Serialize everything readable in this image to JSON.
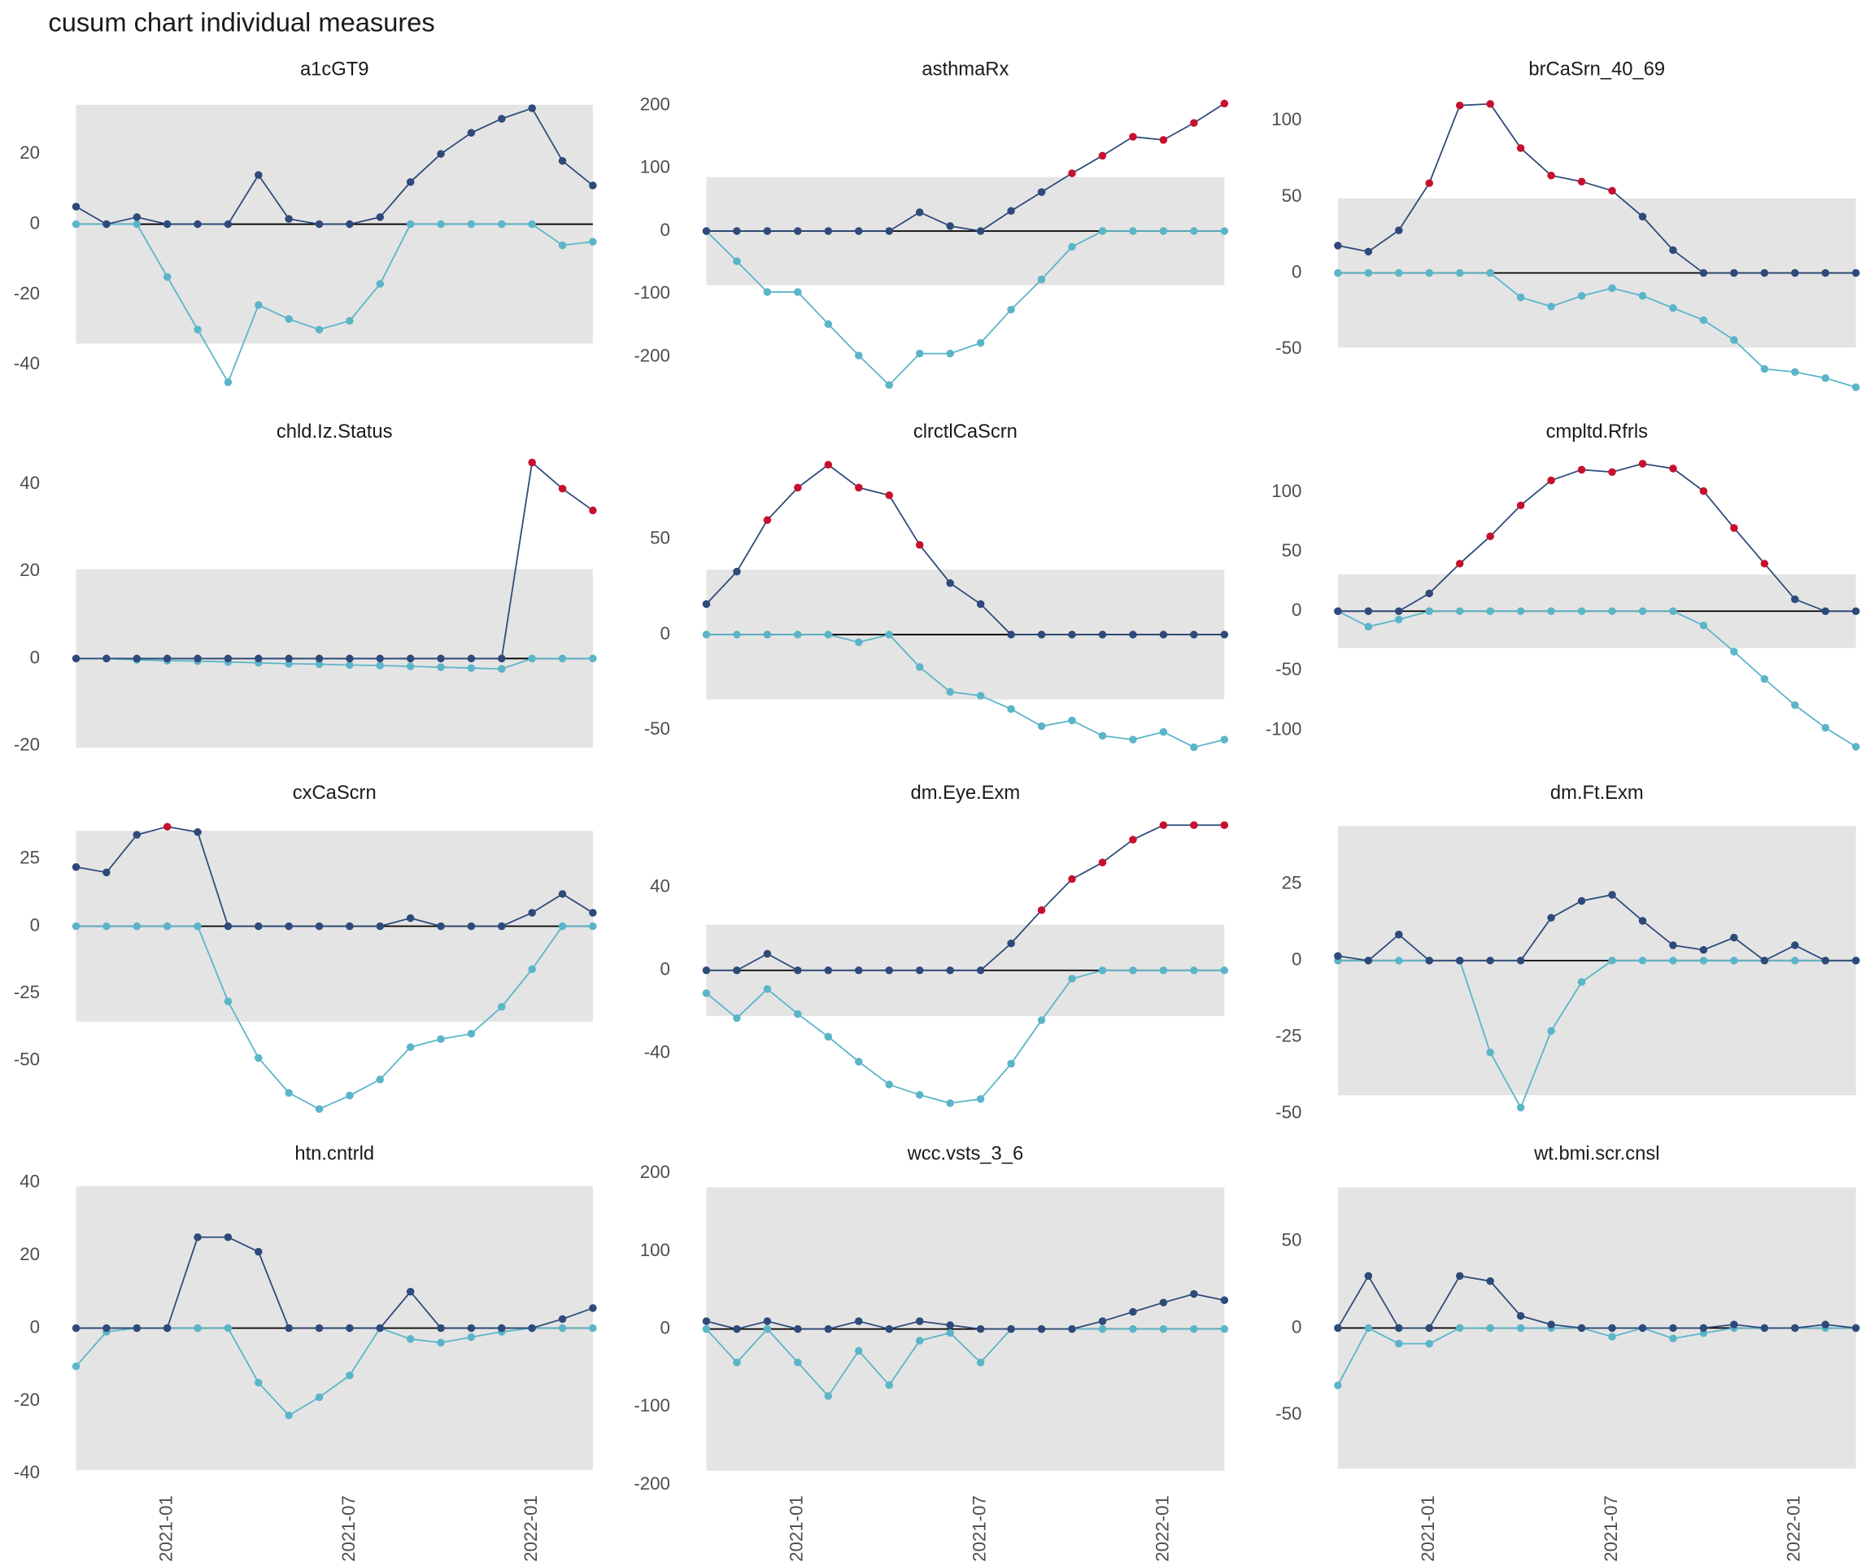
{
  "title": "cusum chart  individual measures",
  "chart_data": [
    {
      "type": "line",
      "title": "a1cGT9",
      "x": [
        "2020-10",
        "2020-11",
        "2020-12",
        "2021-01",
        "2021-02",
        "2021-03",
        "2021-04",
        "2021-05",
        "2021-06",
        "2021-07",
        "2021-08",
        "2021-09",
        "2021-10",
        "2021-11",
        "2021-12",
        "2022-01",
        "2022-02",
        "2022-03"
      ],
      "ylim": [
        -49,
        39
      ],
      "yticks": [
        -40,
        -20,
        0,
        20
      ],
      "limit": 34,
      "series": [
        {
          "color": "#2e4a7a",
          "highlight_color": "#c8102e",
          "values": [
            5,
            0,
            2,
            0,
            0,
            0,
            14,
            1.5,
            0,
            0,
            2,
            12,
            20,
            26,
            30,
            33,
            18,
            11
          ]
        },
        {
          "color": "#5bb5c8",
          "values": [
            0,
            0,
            0,
            -15,
            -30,
            -45,
            -23,
            -27,
            -30,
            -27.5,
            -17,
            0,
            0,
            0,
            0,
            0,
            -6,
            -5
          ]
        }
      ]
    },
    {
      "type": "line",
      "title": "asthmaRx",
      "x": [
        "2020-10",
        "2020-11",
        "2020-12",
        "2021-01",
        "2021-02",
        "2021-03",
        "2021-04",
        "2021-05",
        "2021-06",
        "2021-07",
        "2021-08",
        "2021-09",
        "2021-10",
        "2021-11",
        "2021-12",
        "2022-01",
        "2022-02",
        "2022-03"
      ],
      "ylim": [
        -263,
        229
      ],
      "yticks": [
        -200,
        -100,
        0,
        100,
        200
      ],
      "limit": 86,
      "series": [
        {
          "color": "#2e4a7a",
          "highlight_color": "#c8102e",
          "values": [
            0,
            0,
            0,
            0,
            0,
            0,
            0,
            30,
            8,
            0,
            32,
            62,
            92,
            120,
            150,
            145,
            172,
            203
          ]
        },
        {
          "color": "#5bb5c8",
          "values": [
            0,
            -48,
            -97,
            -97,
            -148,
            -198,
            -245,
            -195,
            -195,
            -178,
            -125,
            -77,
            -25,
            0,
            0,
            0,
            0,
            0
          ]
        }
      ]
    },
    {
      "type": "line",
      "title": "brCaSrn_40_69",
      "x": [
        "2020-10",
        "2020-11",
        "2020-12",
        "2021-01",
        "2021-02",
        "2021-03",
        "2021-04",
        "2021-05",
        "2021-06",
        "2021-07",
        "2021-08",
        "2021-09",
        "2021-10",
        "2021-11",
        "2021-12",
        "2022-01",
        "2022-02",
        "2022-03"
      ],
      "ylim": [
        -81,
        122
      ],
      "yticks": [
        -50,
        0,
        50,
        100
      ],
      "limit": 49,
      "series": [
        {
          "color": "#2e4a7a",
          "highlight_color": "#c8102e",
          "values": [
            18,
            14,
            28,
            59,
            110,
            111,
            82,
            64,
            60,
            54,
            37,
            15,
            0,
            0,
            0,
            0,
            0,
            0
          ]
        },
        {
          "color": "#5bb5c8",
          "values": [
            0,
            0,
            0,
            0,
            0,
            0,
            -16,
            -22,
            -15,
            -10,
            -15,
            -23,
            -31,
            -44,
            -63,
            -65,
            -69,
            -75
          ]
        }
      ]
    },
    {
      "type": "line",
      "title": "chld.Iz.Status",
      "x": [
        "2020-10",
        "2020-11",
        "2020-12",
        "2021-01",
        "2021-02",
        "2021-03",
        "2021-04",
        "2021-05",
        "2021-06",
        "2021-07",
        "2021-08",
        "2021-09",
        "2021-10",
        "2021-11",
        "2021-12",
        "2022-01",
        "2022-02",
        "2022-03"
      ],
      "ylim": [
        -23,
        48
      ],
      "yticks": [
        -20,
        0,
        20,
        40
      ],
      "limit": 20.5,
      "series": [
        {
          "color": "#2e4a7a",
          "highlight_color": "#c8102e",
          "values": [
            0,
            0,
            0,
            0,
            0,
            0,
            0,
            0,
            0,
            0,
            0,
            0,
            0,
            0,
            0,
            45,
            39,
            34
          ]
        },
        {
          "color": "#5bb5c8",
          "values": [
            0,
            0,
            -0.3,
            -0.5,
            -0.6,
            -0.8,
            -1,
            -1.2,
            -1.3,
            -1.5,
            -1.6,
            -1.8,
            -2,
            -2.2,
            -2.4,
            0,
            0,
            0
          ]
        }
      ]
    },
    {
      "type": "line",
      "title": "clrctlCaScrn",
      "x": [
        "2020-10",
        "2020-11",
        "2020-12",
        "2021-01",
        "2021-02",
        "2021-03",
        "2021-04",
        "2021-05",
        "2021-06",
        "2021-07",
        "2021-08",
        "2021-09",
        "2021-10",
        "2021-11",
        "2021-12",
        "2022-01",
        "2022-02",
        "2022-03"
      ],
      "ylim": [
        -65,
        97
      ],
      "yticks": [
        -50,
        0,
        50
      ],
      "limit": 34,
      "series": [
        {
          "color": "#2e4a7a",
          "highlight_color": "#c8102e",
          "values": [
            16,
            33,
            60,
            77,
            89,
            77,
            73,
            47,
            27,
            16,
            0,
            0,
            0,
            0,
            0,
            0,
            0,
            0
          ]
        },
        {
          "color": "#5bb5c8",
          "values": [
            0,
            0,
            0,
            0,
            0,
            -4,
            0,
            -17,
            -30,
            -32,
            -39,
            -48,
            -45,
            -53,
            -55,
            -51,
            -59,
            -55
          ]
        }
      ]
    },
    {
      "type": "line",
      "title": "cmpltd.Rfrls",
      "x": [
        "2020-10",
        "2020-11",
        "2020-12",
        "2021-01",
        "2021-02",
        "2021-03",
        "2021-04",
        "2021-05",
        "2021-06",
        "2021-07",
        "2021-08",
        "2021-09",
        "2021-10",
        "2021-11",
        "2021-12",
        "2022-01",
        "2022-02",
        "2022-03"
      ],
      "ylim": [
        -124,
        136
      ],
      "yticks": [
        -100,
        -50,
        0,
        50,
        100
      ],
      "limit": 31,
      "series": [
        {
          "color": "#2e4a7a",
          "highlight_color": "#c8102e",
          "values": [
            0,
            0,
            0,
            15,
            40,
            63,
            89,
            110,
            119,
            117,
            124,
            120,
            101,
            70,
            40,
            10,
            0,
            0
          ]
        },
        {
          "color": "#5bb5c8",
          "values": [
            0,
            -13,
            -7,
            0,
            0,
            0,
            0,
            0,
            0,
            0,
            0,
            0,
            -12,
            -34,
            -57,
            -79,
            -98,
            -114
          ]
        }
      ]
    },
    {
      "type": "line",
      "title": "cxCaScrn",
      "x": [
        "2020-10",
        "2020-11",
        "2020-12",
        "2021-01",
        "2021-02",
        "2021-03",
        "2021-04",
        "2021-05",
        "2021-06",
        "2021-07",
        "2021-08",
        "2021-09",
        "2021-10",
        "2021-11",
        "2021-12",
        "2022-01",
        "2022-02",
        "2022-03"
      ],
      "ylim": [
        -72,
        43
      ],
      "yticks": [
        -50,
        -25,
        0,
        25
      ],
      "limit": 35.5,
      "series": [
        {
          "color": "#2e4a7a",
          "highlight_color": "#c8102e",
          "values": [
            22,
            20,
            34,
            37,
            35,
            0,
            0,
            0,
            0,
            0,
            0,
            3,
            0,
            0,
            0,
            5,
            12,
            5
          ]
        },
        {
          "color": "#5bb5c8",
          "values": [
            0,
            0,
            0,
            0,
            0,
            -28,
            -49,
            -62,
            -68,
            -63,
            -57,
            -45,
            -42,
            -40,
            -30,
            -16,
            0,
            0
          ]
        }
      ]
    },
    {
      "type": "line",
      "title": "dm.Eye.Exm",
      "x": [
        "2020-10",
        "2020-11",
        "2020-12",
        "2021-01",
        "2021-02",
        "2021-03",
        "2021-04",
        "2021-05",
        "2021-06",
        "2021-07",
        "2021-08",
        "2021-09",
        "2021-10",
        "2021-11",
        "2021-12",
        "2022-01",
        "2022-02",
        "2022-03"
      ],
      "ylim": [
        -72,
        77
      ],
      "yticks": [
        -40,
        0,
        40
      ],
      "limit": 22,
      "series": [
        {
          "color": "#2e4a7a",
          "highlight_color": "#c8102e",
          "values": [
            0,
            0,
            8,
            0,
            0,
            0,
            0,
            0,
            0,
            0,
            13,
            29,
            44,
            52,
            63,
            70,
            70,
            70
          ]
        },
        {
          "color": "#5bb5c8",
          "values": [
            -11,
            -23,
            -9,
            -21,
            -32,
            -44,
            -55,
            -60,
            -64,
            -62,
            -45,
            -24,
            -4,
            0,
            0,
            0,
            0,
            0
          ]
        }
      ]
    },
    {
      "type": "line",
      "title": "dm.Ft.Exm",
      "x": [
        "2020-10",
        "2020-11",
        "2020-12",
        "2021-01",
        "2021-02",
        "2021-03",
        "2021-04",
        "2021-05",
        "2021-06",
        "2021-07",
        "2021-08",
        "2021-09",
        "2021-10",
        "2021-11",
        "2021-12",
        "2022-01",
        "2022-02",
        "2022-03"
      ],
      "ylim": [
        -52,
        49
      ],
      "yticks": [
        -50,
        -25,
        0,
        25
      ],
      "limit": 44,
      "series": [
        {
          "color": "#2e4a7a",
          "highlight_color": "#c8102e",
          "values": [
            1.5,
            0,
            8.5,
            0,
            0,
            0,
            0,
            14,
            19.5,
            21.5,
            13,
            5,
            3.5,
            7.5,
            0,
            5,
            0,
            0
          ]
        },
        {
          "color": "#5bb5c8",
          "values": [
            0,
            0,
            0,
            0,
            0,
            -30,
            -48,
            -23,
            -7,
            0,
            0,
            0,
            0,
            0,
            0,
            0,
            0,
            0
          ]
        }
      ]
    },
    {
      "type": "line",
      "title": "htn.cntrld",
      "x": [
        "2020-10",
        "2020-11",
        "2020-12",
        "2021-01",
        "2021-02",
        "2021-03",
        "2021-04",
        "2021-05",
        "2021-06",
        "2021-07",
        "2021-08",
        "2021-09",
        "2021-10",
        "2021-11",
        "2021-12",
        "2022-01",
        "2022-02",
        "2022-03"
      ],
      "xticks": [
        "2021-01",
        "2021-07",
        "2022-01"
      ],
      "ylim": [
        -42,
        43
      ],
      "yticks": [
        -40,
        -20,
        0,
        20,
        40
      ],
      "limit": 39,
      "series": [
        {
          "color": "#2e4a7a",
          "highlight_color": "#c8102e",
          "values": [
            0,
            0,
            0,
            0,
            25,
            25,
            21,
            0,
            0,
            0,
            0,
            10,
            0,
            0,
            0,
            0,
            2.5,
            5.5
          ]
        },
        {
          "color": "#5bb5c8",
          "values": [
            -10.5,
            -1,
            0,
            0,
            0,
            0,
            -15,
            -24,
            -19,
            -13,
            0,
            -3,
            -4,
            -2.5,
            -1,
            0,
            0,
            0
          ]
        }
      ]
    },
    {
      "type": "line",
      "title": "wcc.vsts_3_6",
      "x": [
        "2020-10",
        "2020-11",
        "2020-12",
        "2021-01",
        "2021-02",
        "2021-03",
        "2021-04",
        "2021-05",
        "2021-06",
        "2021-07",
        "2021-08",
        "2021-09",
        "2021-10",
        "2021-11",
        "2021-12",
        "2022-01",
        "2022-02",
        "2022-03"
      ],
      "xticks": [
        "2021-01",
        "2021-07",
        "2022-01"
      ],
      "ylim": [
        -195,
        202
      ],
      "yticks": [
        -200,
        -100,
        0,
        100,
        200
      ],
      "limit": 182,
      "series": [
        {
          "color": "#2e4a7a",
          "highlight_color": "#c8102e",
          "values": [
            10,
            0,
            10,
            0,
            0,
            10,
            0,
            10,
            5,
            0,
            0,
            0,
            0,
            10,
            22,
            34,
            45,
            37
          ]
        },
        {
          "color": "#5bb5c8",
          "values": [
            0,
            -43,
            0,
            -43,
            -86,
            -28,
            -72,
            -15,
            -5,
            -43,
            0,
            0,
            0,
            0,
            0,
            0,
            0,
            0
          ]
        }
      ]
    },
    {
      "type": "line",
      "title": "wt.bmi.scr.cnsl",
      "x": [
        "2020-10",
        "2020-11",
        "2020-12",
        "2021-01",
        "2021-02",
        "2021-03",
        "2021-04",
        "2021-05",
        "2021-06",
        "2021-07",
        "2021-08",
        "2021-09",
        "2021-10",
        "2021-11",
        "2021-12",
        "2022-01",
        "2022-02",
        "2022-03"
      ],
      "xticks": [
        "2021-01",
        "2021-07",
        "2022-01"
      ],
      "ylim": [
        -88,
        90
      ],
      "yticks": [
        -50,
        0,
        50
      ],
      "limit": 81,
      "series": [
        {
          "color": "#2e4a7a",
          "highlight_color": "#c8102e",
          "values": [
            0,
            30,
            0,
            0,
            30,
            27,
            7,
            2,
            0,
            0,
            0,
            0,
            0,
            2,
            0,
            0,
            2,
            0
          ]
        },
        {
          "color": "#5bb5c8",
          "values": [
            -33,
            0,
            -9,
            -9,
            0,
            0,
            0,
            0,
            0,
            -5,
            0,
            -6,
            -3,
            0,
            0,
            0,
            0,
            0
          ]
        }
      ]
    }
  ]
}
